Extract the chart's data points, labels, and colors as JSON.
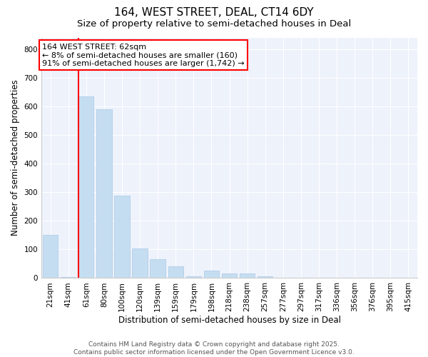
{
  "title": "164, WEST STREET, DEAL, CT14 6DY",
  "subtitle": "Size of property relative to semi-detached houses in Deal",
  "xlabel": "Distribution of semi-detached houses by size in Deal",
  "ylabel": "Number of semi-detached properties",
  "categories": [
    "21sqm",
    "41sqm",
    "61sqm",
    "80sqm",
    "100sqm",
    "120sqm",
    "139sqm",
    "159sqm",
    "179sqm",
    "198sqm",
    "218sqm",
    "238sqm",
    "257sqm",
    "277sqm",
    "297sqm",
    "317sqm",
    "336sqm",
    "356sqm",
    "376sqm",
    "395sqm",
    "415sqm"
  ],
  "values": [
    150,
    3,
    635,
    590,
    287,
    103,
    65,
    40,
    5,
    25,
    15,
    15,
    5,
    2,
    0,
    0,
    0,
    0,
    0,
    0,
    0
  ],
  "bar_color": "#c5ddf0",
  "bar_edgecolor": "#a8c8e8",
  "vline_x": 2,
  "vline_color": "red",
  "annotation_text": "164 WEST STREET: 62sqm\n← 8% of semi-detached houses are smaller (160)\n91% of semi-detached houses are larger (1,742) →",
  "annotation_box_color": "white",
  "annotation_box_edgecolor": "red",
  "ylim": [
    0,
    840
  ],
  "yticks": [
    0,
    100,
    200,
    300,
    400,
    500,
    600,
    700,
    800
  ],
  "footer": "Contains HM Land Registry data © Crown copyright and database right 2025.\nContains public sector information licensed under the Open Government Licence v3.0.",
  "bg_color": "#ffffff",
  "plot_bg_color": "#eef2fb",
  "grid_color": "#ffffff",
  "title_fontsize": 11,
  "subtitle_fontsize": 9.5,
  "label_fontsize": 8.5,
  "tick_fontsize": 7.5,
  "footer_fontsize": 6.5,
  "annotation_fontsize": 8
}
